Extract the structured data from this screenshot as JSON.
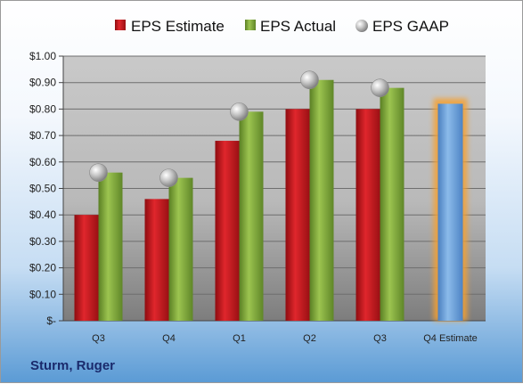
{
  "company": "Sturm, Ruger",
  "chart_data": {
    "type": "bar",
    "categories": [
      "Q3",
      "Q4",
      "Q1",
      "Q2",
      "Q3",
      "Q4 Estimate"
    ],
    "legend": [
      "EPS Estimate",
      "EPS Actual",
      "EPS GAAP"
    ],
    "legend_position": "top",
    "series": [
      {
        "name": "EPS Estimate",
        "kind": "bar",
        "color": "#c0161c",
        "values": [
          0.4,
          0.46,
          0.68,
          0.8,
          0.8,
          null
        ]
      },
      {
        "name": "EPS Actual",
        "kind": "bar",
        "color": "#7fa83a",
        "values": [
          0.56,
          0.54,
          0.79,
          0.91,
          0.88,
          null
        ]
      },
      {
        "name": "EPS GAAP",
        "kind": "marker",
        "color": "#b8b8b8",
        "values": [
          0.56,
          0.54,
          0.79,
          0.91,
          0.88,
          null
        ]
      },
      {
        "name": "Q4 Estimate",
        "kind": "bar",
        "color": "#6fa3dc",
        "highlight": "#f5a030",
        "values": [
          null,
          null,
          null,
          null,
          null,
          0.82
        ]
      }
    ],
    "ylim": [
      0,
      1.0
    ],
    "yticks": [
      0,
      0.1,
      0.2,
      0.3,
      0.4,
      0.5,
      0.6,
      0.7,
      0.8,
      0.9,
      1.0
    ],
    "ytick_labels": [
      "$-",
      "$0.10",
      "$0.20",
      "$0.30",
      "$0.40",
      "$0.50",
      "$0.60",
      "$0.70",
      "$0.80",
      "$0.90",
      "$1.00"
    ],
    "grid": true
  }
}
